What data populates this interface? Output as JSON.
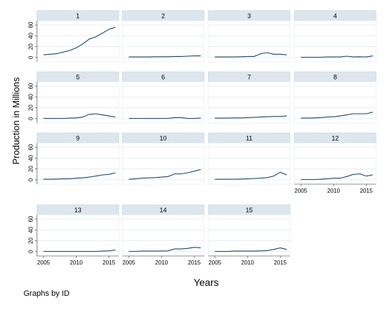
{
  "chart_data": {
    "type": "line",
    "layout": "small-multiples",
    "xlabel": "Years",
    "ylabel": "Production in Millions",
    "footnote": "Graphs by ID",
    "x_ticks": [
      2005,
      2010,
      2015
    ],
    "y_ticks": [
      0,
      20,
      40,
      60
    ],
    "xlim": [
      2004,
      2016.5
    ],
    "ylim": [
      -8,
      68
    ],
    "series_color": "#1a476f",
    "years": [
      2005,
      2006,
      2007,
      2008,
      2009,
      2010,
      2011,
      2012,
      2013,
      2014,
      2015,
      2016
    ],
    "panels": [
      {
        "id": "1",
        "values": [
          5,
          6,
          7,
          10,
          13,
          18,
          25,
          34,
          38,
          45,
          52,
          56
        ]
      },
      {
        "id": "2",
        "values": [
          1,
          1,
          1,
          1,
          1.5,
          1.5,
          1.5,
          2,
          2,
          2.5,
          3,
          3
        ]
      },
      {
        "id": "3",
        "values": [
          1,
          1,
          1,
          1,
          1.5,
          2,
          2,
          7,
          9,
          6,
          6,
          5
        ]
      },
      {
        "id": "4",
        "values": [
          0.5,
          0.5,
          0.5,
          0.5,
          1,
          1,
          1,
          2.5,
          1,
          1.5,
          1,
          3
        ]
      },
      {
        "id": "5",
        "values": [
          0.5,
          0.5,
          0.5,
          0.5,
          1,
          1.5,
          3,
          8,
          9,
          7,
          5,
          3
        ]
      },
      {
        "id": "6",
        "values": [
          0.5,
          0.5,
          0.5,
          0.5,
          0.5,
          0.5,
          0.5,
          2,
          2,
          0.5,
          0.5,
          1
        ]
      },
      {
        "id": "7",
        "values": [
          1,
          1,
          1,
          1.5,
          1.5,
          2,
          2.5,
          3,
          3.5,
          4,
          4,
          5
        ]
      },
      {
        "id": "8",
        "values": [
          1,
          1,
          1.5,
          2,
          3,
          3.5,
          5,
          7,
          9,
          9,
          9,
          12
        ]
      },
      {
        "id": "9",
        "values": [
          1,
          1,
          1.5,
          2,
          2,
          3,
          3.5,
          5,
          7,
          9,
          10,
          13
        ]
      },
      {
        "id": "10",
        "values": [
          1,
          2,
          3,
          3.5,
          4,
          5,
          6,
          11,
          11,
          13,
          16,
          19
        ]
      },
      {
        "id": "11",
        "values": [
          1,
          1,
          1,
          1,
          1.5,
          2,
          2.5,
          3,
          4,
          7,
          14,
          9
        ]
      },
      {
        "id": "12",
        "values": [
          0.5,
          0.5,
          0.5,
          1,
          2,
          3,
          3,
          6,
          10,
          11,
          7,
          9
        ]
      },
      {
        "id": "13",
        "values": [
          0.5,
          0.5,
          0.5,
          0.5,
          0.5,
          0.5,
          0.5,
          0.5,
          0.5,
          1,
          1.5,
          3
        ]
      },
      {
        "id": "14",
        "values": [
          0.5,
          0.5,
          1,
          1,
          1,
          1,
          1.5,
          5,
          5,
          6,
          8,
          7
        ]
      },
      {
        "id": "15",
        "values": [
          0.5,
          0.5,
          0.5,
          1,
          1,
          1,
          1,
          1.5,
          2,
          4,
          7,
          4
        ]
      }
    ]
  }
}
